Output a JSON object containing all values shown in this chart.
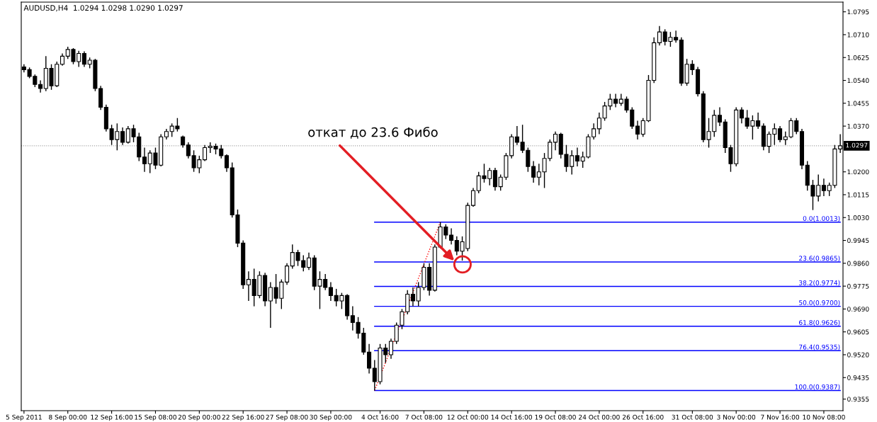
{
  "chart_data": {
    "type": "candlestick",
    "title": "AUDUSD,H4  1.0294 1.0298 1.0290 1.0297",
    "color": "#000000",
    "categories": [
      "5 Sep 2011",
      null,
      null,
      null,
      null,
      null,
      null,
      null,
      "8 Sep 00:00",
      null,
      null,
      null,
      null,
      null,
      null,
      null,
      "12 Sep 16:00",
      null,
      null,
      null,
      null,
      null,
      null,
      null,
      "15 Sep 08:00",
      null,
      null,
      null,
      null,
      null,
      null,
      null,
      "20 Sep 00:00",
      null,
      null,
      null,
      null,
      null,
      null,
      null,
      "22 Sep 16:00",
      null,
      null,
      null,
      null,
      null,
      null,
      null,
      "27 Sep 08:00",
      null,
      null,
      null,
      null,
      null,
      null,
      null,
      "30 Sep 00:00",
      null,
      null,
      null,
      null,
      null,
      null,
      null,
      null,
      "4 Oct 16:00",
      null,
      null,
      null,
      null,
      null,
      null,
      null,
      "7 Oct 08:00",
      null,
      null,
      null,
      null,
      null,
      null,
      null,
      "12 Oct 00:00",
      null,
      null,
      null,
      null,
      null,
      null,
      null,
      "14 Oct 16:00",
      null,
      null,
      null,
      null,
      null,
      null,
      null,
      "19 Oct 08:00",
      null,
      null,
      null,
      null,
      null,
      null,
      null,
      "24 Oct 00:00",
      null,
      null,
      null,
      null,
      null,
      null,
      null,
      "26 Oct 16:00",
      null,
      null,
      null,
      null,
      null,
      null,
      null,
      null,
      "31 Oct 08:00",
      null,
      null,
      null,
      null,
      null,
      null,
      null,
      "3 Nov 00:00",
      null,
      null,
      null,
      null,
      null,
      null,
      null,
      "7 Nov 16:00",
      null,
      null,
      null,
      null,
      null,
      null,
      null,
      "10 Nov 08:00",
      null,
      null,
      null
    ],
    "ohlc": [
      [
        1.059,
        1.06,
        1.057,
        1.058
      ],
      [
        1.058,
        1.0588,
        1.0548,
        1.0555
      ],
      [
        1.0555,
        1.0562,
        1.0515,
        1.0525
      ],
      [
        1.0525,
        1.054,
        1.0495,
        1.051
      ],
      [
        1.051,
        1.063,
        1.05,
        1.0585
      ],
      [
        1.0585,
        1.06,
        1.0505,
        1.052
      ],
      [
        1.052,
        1.061,
        1.0515,
        1.06
      ],
      [
        1.06,
        1.064,
        1.0595,
        1.063
      ],
      [
        1.063,
        1.0665,
        1.062,
        1.0655
      ],
      [
        1.0655,
        1.066,
        1.06,
        1.061
      ],
      [
        1.061,
        1.065,
        1.059,
        1.064
      ],
      [
        1.064,
        1.0648,
        1.059,
        1.06
      ],
      [
        1.06,
        1.0625,
        1.0585,
        1.0615
      ],
      [
        1.0615,
        1.062,
        1.05,
        1.051
      ],
      [
        1.051,
        1.052,
        1.043,
        1.044
      ],
      [
        1.044,
        1.045,
        1.035,
        1.036
      ],
      [
        1.036,
        1.0375,
        1.03,
        1.032
      ],
      [
        1.032,
        1.038,
        1.028,
        1.035
      ],
      [
        1.035,
        1.0365,
        1.03,
        1.031
      ],
      [
        1.031,
        1.037,
        1.0305,
        1.036
      ],
      [
        1.036,
        1.0375,
        1.031,
        1.033
      ],
      [
        1.033,
        1.0345,
        1.024,
        1.0255
      ],
      [
        1.0255,
        1.029,
        1.02,
        1.023
      ],
      [
        1.023,
        1.028,
        1.0195,
        1.027
      ],
      [
        1.027,
        1.029,
        1.021,
        1.0225
      ],
      [
        1.0225,
        1.034,
        1.022,
        1.033
      ],
      [
        1.033,
        1.036,
        1.032,
        1.035
      ],
      [
        1.035,
        1.038,
        1.033,
        1.037
      ],
      [
        1.037,
        1.04,
        1.035,
        1.036
      ],
      [
        1.033,
        1.0335,
        1.029,
        1.03
      ],
      [
        1.03,
        1.031,
        1.025,
        1.026
      ],
      [
        1.026,
        1.028,
        1.02,
        1.0215
      ],
      [
        1.0215,
        1.026,
        1.0195,
        1.0245
      ],
      [
        1.0245,
        1.03,
        1.024,
        1.029
      ],
      [
        1.029,
        1.031,
        1.027,
        1.0295
      ],
      [
        1.0295,
        1.0305,
        1.0265,
        1.0285
      ],
      [
        1.0285,
        1.03,
        1.025,
        1.026
      ],
      [
        1.026,
        1.0265,
        1.02,
        1.0215
      ],
      [
        1.0215,
        1.0235,
        1.003,
        1.004
      ],
      [
        1.004,
        1.006,
        0.992,
        0.9935
      ],
      [
        0.9935,
        0.9945,
        0.9765,
        0.978
      ],
      [
        0.978,
        0.983,
        0.972,
        0.98
      ],
      [
        0.98,
        0.984,
        0.97,
        0.974
      ],
      [
        0.974,
        0.983,
        0.973,
        0.9815
      ],
      [
        0.9815,
        0.9825,
        0.97,
        0.972
      ],
      [
        0.972,
        0.979,
        0.962,
        0.977
      ],
      [
        0.977,
        0.982,
        0.971,
        0.973
      ],
      [
        0.973,
        0.98,
        0.969,
        0.979
      ],
      [
        0.979,
        0.986,
        0.978,
        0.985
      ],
      [
        0.985,
        0.993,
        0.984,
        0.99
      ],
      [
        0.99,
        0.991,
        0.985,
        0.987
      ],
      [
        0.987,
        0.989,
        0.983,
        0.9845
      ],
      [
        0.9845,
        0.99,
        0.9835,
        0.988
      ],
      [
        0.988,
        0.989,
        0.976,
        0.9775
      ],
      [
        0.9775,
        0.983,
        0.969,
        0.98
      ],
      [
        0.98,
        0.982,
        0.976,
        0.977
      ],
      [
        0.977,
        0.979,
        0.972,
        0.974
      ],
      [
        0.974,
        0.9765,
        0.97,
        0.972
      ],
      [
        0.972,
        0.975,
        0.969,
        0.974
      ],
      [
        0.974,
        0.9745,
        0.965,
        0.9665
      ],
      [
        0.9665,
        0.97,
        0.961,
        0.964
      ],
      [
        0.964,
        0.966,
        0.958,
        0.96
      ],
      [
        0.96,
        0.962,
        0.952,
        0.953
      ],
      [
        0.953,
        0.956,
        0.945,
        0.947
      ],
      [
        0.947,
        0.95,
        0.9387,
        0.942
      ],
      [
        0.942,
        0.956,
        0.941,
        0.9545
      ],
      [
        0.9545,
        0.956,
        0.949,
        0.952
      ],
      [
        0.952,
        0.958,
        0.9505,
        0.957
      ],
      [
        0.957,
        0.964,
        0.956,
        0.963
      ],
      [
        0.963,
        0.969,
        0.9615,
        0.968
      ],
      [
        0.968,
        0.976,
        0.967,
        0.9745
      ],
      [
        0.9745,
        0.977,
        0.97,
        0.972
      ],
      [
        0.972,
        0.979,
        0.97,
        0.977
      ],
      [
        0.977,
        0.986,
        0.976,
        0.9845
      ],
      [
        0.9845,
        0.986,
        0.974,
        0.976
      ],
      [
        0.976,
        0.993,
        0.9755,
        0.992
      ],
      [
        0.992,
        1.0013,
        0.9915,
        0.9995
      ],
      [
        0.9995,
        1.0005,
        0.995,
        0.9965
      ],
      [
        0.9965,
        0.999,
        0.993,
        0.9945
      ],
      [
        0.9945,
        0.996,
        0.989,
        0.9905
      ],
      [
        0.9905,
        0.996,
        0.987,
        0.994
      ],
      [
        0.9915,
        1.0085,
        0.9905,
        1.0075
      ],
      [
        1.0075,
        1.014,
        1.007,
        1.013
      ],
      [
        1.013,
        1.02,
        1.012,
        1.0185
      ],
      [
        1.0185,
        1.023,
        1.016,
        1.0175
      ],
      [
        1.0175,
        1.0215,
        1.015,
        1.0205
      ],
      [
        1.0205,
        1.0215,
        1.013,
        1.0145
      ],
      [
        1.0145,
        1.019,
        1.013,
        1.018
      ],
      [
        1.018,
        1.027,
        1.017,
        1.026
      ],
      [
        1.026,
        1.034,
        1.025,
        1.033
      ],
      [
        1.033,
        1.037,
        1.03,
        1.031
      ],
      [
        1.031,
        1.0375,
        1.027,
        1.028
      ],
      [
        1.028,
        1.029,
        1.02,
        1.022
      ],
      [
        1.022,
        1.024,
        1.016,
        1.018
      ],
      [
        1.018,
        1.023,
        1.015,
        1.02
      ],
      [
        1.02,
        1.027,
        1.014,
        1.025
      ],
      [
        1.025,
        1.032,
        1.024,
        1.031
      ],
      [
        1.031,
        1.035,
        1.028,
        1.034
      ],
      [
        1.034,
        1.0345,
        1.025,
        1.0265
      ],
      [
        1.0265,
        1.03,
        1.02,
        1.022
      ],
      [
        1.022,
        1.028,
        1.019,
        1.026
      ],
      [
        1.026,
        1.029,
        1.022,
        1.024
      ],
      [
        1.024,
        1.0275,
        1.0215,
        1.0255
      ],
      [
        1.0255,
        1.034,
        1.025,
        1.033
      ],
      [
        1.033,
        1.038,
        1.032,
        1.036
      ],
      [
        1.036,
        1.042,
        1.034,
        1.04
      ],
      [
        1.04,
        1.046,
        1.039,
        1.0445
      ],
      [
        1.0445,
        1.049,
        1.043,
        1.047
      ],
      [
        1.047,
        1.049,
        1.044,
        1.0455
      ],
      [
        1.0455,
        1.049,
        1.0445,
        1.047
      ],
      [
        1.047,
        1.048,
        1.042,
        1.043
      ],
      [
        1.043,
        1.044,
        1.036,
        1.037
      ],
      [
        1.037,
        1.039,
        1.032,
        1.034
      ],
      [
        1.034,
        1.04,
        1.033,
        1.039
      ],
      [
        1.039,
        1.056,
        1.0385,
        1.054
      ],
      [
        1.054,
        1.07,
        1.053,
        1.068
      ],
      [
        1.068,
        1.0742,
        1.067,
        1.072
      ],
      [
        1.072,
        1.073,
        1.067,
        1.0685
      ],
      [
        1.0685,
        1.072,
        1.0665,
        1.07
      ],
      [
        1.07,
        1.0725,
        1.068,
        1.069
      ],
      [
        1.069,
        1.07,
        1.052,
        1.053
      ],
      [
        1.053,
        1.062,
        1.052,
        1.06
      ],
      [
        1.06,
        1.0615,
        1.056,
        1.058
      ],
      [
        1.058,
        1.059,
        1.048,
        1.049
      ],
      [
        1.049,
        1.05,
        1.031,
        1.032
      ],
      [
        1.032,
        1.04,
        1.029,
        1.035
      ],
      [
        1.035,
        1.043,
        1.033,
        1.041
      ],
      [
        1.041,
        1.044,
        1.037,
        1.0385
      ],
      [
        1.0385,
        1.0395,
        1.027,
        1.029
      ],
      [
        1.029,
        1.03,
        1.02,
        1.023
      ],
      [
        1.023,
        1.044,
        1.022,
        1.043
      ],
      [
        1.043,
        1.044,
        1.038,
        1.04
      ],
      [
        1.04,
        1.043,
        1.036,
        1.037
      ],
      [
        1.037,
        1.041,
        1.032,
        1.039
      ],
      [
        1.039,
        1.042,
        1.036,
        1.037
      ],
      [
        1.037,
        1.038,
        1.028,
        1.0295
      ],
      [
        1.0295,
        1.035,
        1.027,
        1.034
      ],
      [
        1.034,
        1.038,
        1.03,
        1.036
      ],
      [
        1.036,
        1.037,
        1.031,
        1.032
      ],
      [
        1.032,
        1.035,
        1.03,
        1.033
      ],
      [
        1.033,
        1.04,
        1.0325,
        1.039
      ],
      [
        1.039,
        1.04,
        1.034,
        1.035
      ],
      [
        1.035,
        1.036,
        1.021,
        1.0225
      ],
      [
        1.0225,
        1.024,
        1.013,
        1.015
      ],
      [
        1.015,
        1.017,
        1.0058,
        1.011
      ],
      [
        1.011,
        1.019,
        1.009,
        1.015
      ],
      [
        1.015,
        1.0175,
        1.011,
        1.013
      ],
      [
        1.013,
        1.016,
        1.011,
        1.015
      ],
      [
        1.015,
        1.03,
        1.014,
        1.0285
      ],
      [
        1.0285,
        1.034,
        1.027,
        1.0297
      ]
    ],
    "series": [
      {
        "type": "line",
        "name": "0.0(1.0013)",
        "color": "#0000ff",
        "values": [
          null,
          null,
          null,
          null,
          null,
          null,
          null,
          null,
          null,
          null,
          null,
          null,
          null,
          null,
          null,
          null,
          null,
          null,
          null,
          null,
          null,
          null,
          null,
          null,
          null,
          null,
          null,
          null,
          null,
          null,
          null,
          null,
          null,
          null,
          null,
          null,
          null,
          null,
          null,
          null,
          null,
          null,
          null,
          null,
          null,
          null,
          null,
          null,
          null,
          null,
          null,
          null,
          null,
          null,
          null,
          null,
          null,
          null,
          null,
          null,
          null,
          null,
          null,
          null,
          1.0013,
          null,
          null,
          null,
          null,
          null,
          null,
          null,
          null,
          null,
          null,
          null,
          null,
          null,
          null,
          null,
          null,
          null,
          null,
          null,
          null,
          null,
          null,
          null,
          null,
          null,
          null,
          null,
          null,
          null,
          null,
          null,
          null,
          null,
          null,
          null,
          null,
          null,
          null,
          null,
          null,
          null,
          null,
          null,
          null,
          null,
          null,
          null,
          null,
          null,
          null,
          null,
          null,
          null,
          null,
          null,
          null,
          null,
          null,
          null,
          null,
          null,
          null,
          null,
          null,
          null,
          null,
          null,
          null,
          null,
          null,
          null,
          null,
          null,
          null,
          null,
          null,
          null,
          null,
          null,
          null,
          null,
          null,
          null,
          null,
          1.0013
        ]
      },
      {
        "type": "line",
        "name": "23.6(0.9865)",
        "color": "#0000ff",
        "values": [
          null,
          null,
          null,
          null,
          null,
          null,
          null,
          null,
          null,
          null,
          null,
          null,
          null,
          null,
          null,
          null,
          null,
          null,
          null,
          null,
          null,
          null,
          null,
          null,
          null,
          null,
          null,
          null,
          null,
          null,
          null,
          null,
          null,
          null,
          null,
          null,
          null,
          null,
          null,
          null,
          null,
          null,
          null,
          null,
          null,
          null,
          null,
          null,
          null,
          null,
          null,
          null,
          null,
          null,
          null,
          null,
          null,
          null,
          null,
          null,
          null,
          null,
          null,
          null,
          0.9865,
          null,
          null,
          null,
          null,
          null,
          null,
          null,
          null,
          null,
          null,
          null,
          null,
          null,
          null,
          null,
          null,
          null,
          null,
          null,
          null,
          null,
          null,
          null,
          null,
          null,
          null,
          null,
          null,
          null,
          null,
          null,
          null,
          null,
          null,
          null,
          null,
          null,
          null,
          null,
          null,
          null,
          null,
          null,
          null,
          null,
          null,
          null,
          null,
          null,
          null,
          null,
          null,
          null,
          null,
          null,
          null,
          null,
          null,
          null,
          null,
          null,
          null,
          null,
          null,
          null,
          null,
          null,
          null,
          null,
          null,
          null,
          null,
          null,
          null,
          null,
          null,
          null,
          null,
          null,
          null,
          null,
          null,
          null,
          null,
          0.9865
        ]
      },
      {
        "type": "line",
        "name": "38.2(0.9774)",
        "color": "#0000ff",
        "values": [
          null,
          null,
          null,
          null,
          null,
          null,
          null,
          null,
          null,
          null,
          null,
          null,
          null,
          null,
          null,
          null,
          null,
          null,
          null,
          null,
          null,
          null,
          null,
          null,
          null,
          null,
          null,
          null,
          null,
          null,
          null,
          null,
          null,
          null,
          null,
          null,
          null,
          null,
          null,
          null,
          null,
          null,
          null,
          null,
          null,
          null,
          null,
          null,
          null,
          null,
          null,
          null,
          null,
          null,
          null,
          null,
          null,
          null,
          null,
          null,
          null,
          null,
          null,
          null,
          0.9774,
          null,
          null,
          null,
          null,
          null,
          null,
          null,
          null,
          null,
          null,
          null,
          null,
          null,
          null,
          null,
          null,
          null,
          null,
          null,
          null,
          null,
          null,
          null,
          null,
          null,
          null,
          null,
          null,
          null,
          null,
          null,
          null,
          null,
          null,
          null,
          null,
          null,
          null,
          null,
          null,
          null,
          null,
          null,
          null,
          null,
          null,
          null,
          null,
          null,
          null,
          null,
          null,
          null,
          null,
          null,
          null,
          null,
          null,
          null,
          null,
          null,
          null,
          null,
          null,
          null,
          null,
          null,
          null,
          null,
          null,
          null,
          null,
          null,
          null,
          null,
          null,
          null,
          null,
          null,
          null,
          null,
          null,
          null,
          null,
          0.9774
        ]
      },
      {
        "type": "line",
        "name": "50.0(0.9700)",
        "color": "#0000ff",
        "values": [
          null,
          null,
          null,
          null,
          null,
          null,
          null,
          null,
          null,
          null,
          null,
          null,
          null,
          null,
          null,
          null,
          null,
          null,
          null,
          null,
          null,
          null,
          null,
          null,
          null,
          null,
          null,
          null,
          null,
          null,
          null,
          null,
          null,
          null,
          null,
          null,
          null,
          null,
          null,
          null,
          null,
          null,
          null,
          null,
          null,
          null,
          null,
          null,
          null,
          null,
          null,
          null,
          null,
          null,
          null,
          null,
          null,
          null,
          null,
          null,
          null,
          null,
          null,
          null,
          0.97,
          null,
          null,
          null,
          null,
          null,
          null,
          null,
          null,
          null,
          null,
          null,
          null,
          null,
          null,
          null,
          null,
          null,
          null,
          null,
          null,
          null,
          null,
          null,
          null,
          null,
          null,
          null,
          null,
          null,
          null,
          null,
          null,
          null,
          null,
          null,
          null,
          null,
          null,
          null,
          null,
          null,
          null,
          null,
          null,
          null,
          null,
          null,
          null,
          null,
          null,
          null,
          null,
          null,
          null,
          null,
          null,
          null,
          null,
          null,
          null,
          null,
          null,
          null,
          null,
          null,
          null,
          null,
          null,
          null,
          null,
          null,
          null,
          null,
          null,
          null,
          null,
          null,
          null,
          null,
          null,
          null,
          null,
          null,
          null,
          0.97
        ]
      },
      {
        "type": "line",
        "name": "61.8(0.9626)",
        "color": "#0000ff",
        "values": [
          null,
          null,
          null,
          null,
          null,
          null,
          null,
          null,
          null,
          null,
          null,
          null,
          null,
          null,
          null,
          null,
          null,
          null,
          null,
          null,
          null,
          null,
          null,
          null,
          null,
          null,
          null,
          null,
          null,
          null,
          null,
          null,
          null,
          null,
          null,
          null,
          null,
          null,
          null,
          null,
          null,
          null,
          null,
          null,
          null,
          null,
          null,
          null,
          null,
          null,
          null,
          null,
          null,
          null,
          null,
          null,
          null,
          null,
          null,
          null,
          null,
          null,
          null,
          null,
          0.9626,
          null,
          null,
          null,
          null,
          null,
          null,
          null,
          null,
          null,
          null,
          null,
          null,
          null,
          null,
          null,
          null,
          null,
          null,
          null,
          null,
          null,
          null,
          null,
          null,
          null,
          null,
          null,
          null,
          null,
          null,
          null,
          null,
          null,
          null,
          null,
          null,
          null,
          null,
          null,
          null,
          null,
          null,
          null,
          null,
          null,
          null,
          null,
          null,
          null,
          null,
          null,
          null,
          null,
          null,
          null,
          null,
          null,
          null,
          null,
          null,
          null,
          null,
          null,
          null,
          null,
          null,
          null,
          null,
          null,
          null,
          null,
          null,
          null,
          null,
          null,
          null,
          null,
          null,
          null,
          null,
          null,
          null,
          null,
          null,
          0.9626
        ]
      },
      {
        "type": "line",
        "name": "76.4(0.9535)",
        "color": "#0000ff",
        "values": [
          null,
          null,
          null,
          null,
          null,
          null,
          null,
          null,
          null,
          null,
          null,
          null,
          null,
          null,
          null,
          null,
          null,
          null,
          null,
          null,
          null,
          null,
          null,
          null,
          null,
          null,
          null,
          null,
          null,
          null,
          null,
          null,
          null,
          null,
          null,
          null,
          null,
          null,
          null,
          null,
          null,
          null,
          null,
          null,
          null,
          null,
          null,
          null,
          null,
          null,
          null,
          null,
          null,
          null,
          null,
          null,
          null,
          null,
          null,
          null,
          null,
          null,
          null,
          null,
          0.9535,
          null,
          null,
          null,
          null,
          null,
          null,
          null,
          null,
          null,
          null,
          null,
          null,
          null,
          null,
          null,
          null,
          null,
          null,
          null,
          null,
          null,
          null,
          null,
          null,
          null,
          null,
          null,
          null,
          null,
          null,
          null,
          null,
          null,
          null,
          null,
          null,
          null,
          null,
          null,
          null,
          null,
          null,
          null,
          null,
          null,
          null,
          null,
          null,
          null,
          null,
          null,
          null,
          null,
          null,
          null,
          null,
          null,
          null,
          null,
          null,
          null,
          null,
          null,
          null,
          null,
          null,
          null,
          null,
          null,
          null,
          null,
          null,
          null,
          null,
          null,
          null,
          null,
          null,
          null,
          null,
          null,
          null,
          null,
          null,
          0.9535
        ]
      },
      {
        "type": "line",
        "name": "100.0(0.9387)",
        "color": "#0000ff",
        "values": [
          null,
          null,
          null,
          null,
          null,
          null,
          null,
          null,
          null,
          null,
          null,
          null,
          null,
          null,
          null,
          null,
          null,
          null,
          null,
          null,
          null,
          null,
          null,
          null,
          null,
          null,
          null,
          null,
          null,
          null,
          null,
          null,
          null,
          null,
          null,
          null,
          null,
          null,
          null,
          null,
          null,
          null,
          null,
          null,
          null,
          null,
          null,
          null,
          null,
          null,
          null,
          null,
          null,
          null,
          null,
          null,
          null,
          null,
          null,
          null,
          null,
          null,
          null,
          null,
          0.9387,
          null,
          null,
          null,
          null,
          null,
          null,
          null,
          null,
          null,
          null,
          null,
          null,
          null,
          null,
          null,
          null,
          null,
          null,
          null,
          null,
          null,
          null,
          null,
          null,
          null,
          null,
          null,
          null,
          null,
          null,
          null,
          null,
          null,
          null,
          null,
          null,
          null,
          null,
          null,
          null,
          null,
          null,
          null,
          null,
          null,
          null,
          null,
          null,
          null,
          null,
          null,
          null,
          null,
          null,
          null,
          null,
          null,
          null,
          null,
          null,
          null,
          null,
          null,
          null,
          null,
          null,
          null,
          null,
          null,
          null,
          null,
          null,
          null,
          null,
          null,
          null,
          null,
          null,
          null,
          null,
          null,
          null,
          null,
          null,
          0.9387
        ]
      },
      {
        "type": "line",
        "color": "#ff0000",
        "line_style": "dotted",
        "values": [
          null,
          null,
          null,
          null,
          null,
          null,
          null,
          null,
          null,
          null,
          null,
          null,
          null,
          null,
          null,
          null,
          null,
          null,
          null,
          null,
          null,
          null,
          null,
          null,
          null,
          null,
          null,
          null,
          null,
          null,
          null,
          null,
          null,
          null,
          null,
          null,
          null,
          null,
          null,
          null,
          null,
          null,
          null,
          null,
          null,
          null,
          null,
          null,
          null,
          null,
          null,
          null,
          null,
          null,
          null,
          null,
          null,
          null,
          null,
          null,
          null,
          null,
          null,
          null,
          0.9387,
          null,
          null,
          null,
          null,
          null,
          null,
          null,
          null,
          null,
          null,
          null,
          1.0013,
          null,
          null,
          null,
          null,
          null,
          null,
          null,
          null,
          null,
          null,
          null,
          null,
          null,
          null,
          null,
          null,
          null,
          null,
          null,
          null,
          null,
          null,
          null,
          null,
          null,
          null,
          null,
          null,
          null,
          null,
          null,
          null,
          null,
          null,
          null,
          null,
          null,
          null,
          null,
          null,
          null,
          null,
          null,
          null,
          null,
          null,
          null,
          null,
          null,
          null,
          null,
          null,
          null,
          null,
          null,
          null,
          null,
          null,
          null,
          null,
          null,
          null,
          null,
          null,
          null,
          null,
          null,
          null,
          null,
          null,
          null,
          null,
          null
        ]
      }
    ],
    "ref_lines": [
      {
        "axis": "y",
        "value": 1.0297,
        "label": "1.0297",
        "color": "#a0a0a0",
        "line_style": "dotted"
      }
    ],
    "annotations": [
      "откат до 23.6 Фибо"
    ],
    "ylim": [
      0.9312,
      1.0831
    ],
    "yticks": [
      1.0795,
      {
        "value": 1.071,
        "label": "1.0710"
      },
      1.0625,
      {
        "value": 1.054,
        "label": "1.0540"
      },
      1.0455,
      {
        "value": 1.037,
        "label": "1.0370"
      },
      {
        "value": 1.02,
        "label": "1.0200"
      },
      1.0115,
      {
        "value": 1.003,
        "label": "1.0030"
      },
      0.9945,
      {
        "value": 0.986,
        "label": "0.9860"
      },
      0.9775,
      {
        "value": 0.969,
        "label": "0.9690"
      },
      0.9605,
      {
        "value": 0.952,
        "label": "0.9520"
      },
      0.9435,
      0.9355
    ]
  }
}
